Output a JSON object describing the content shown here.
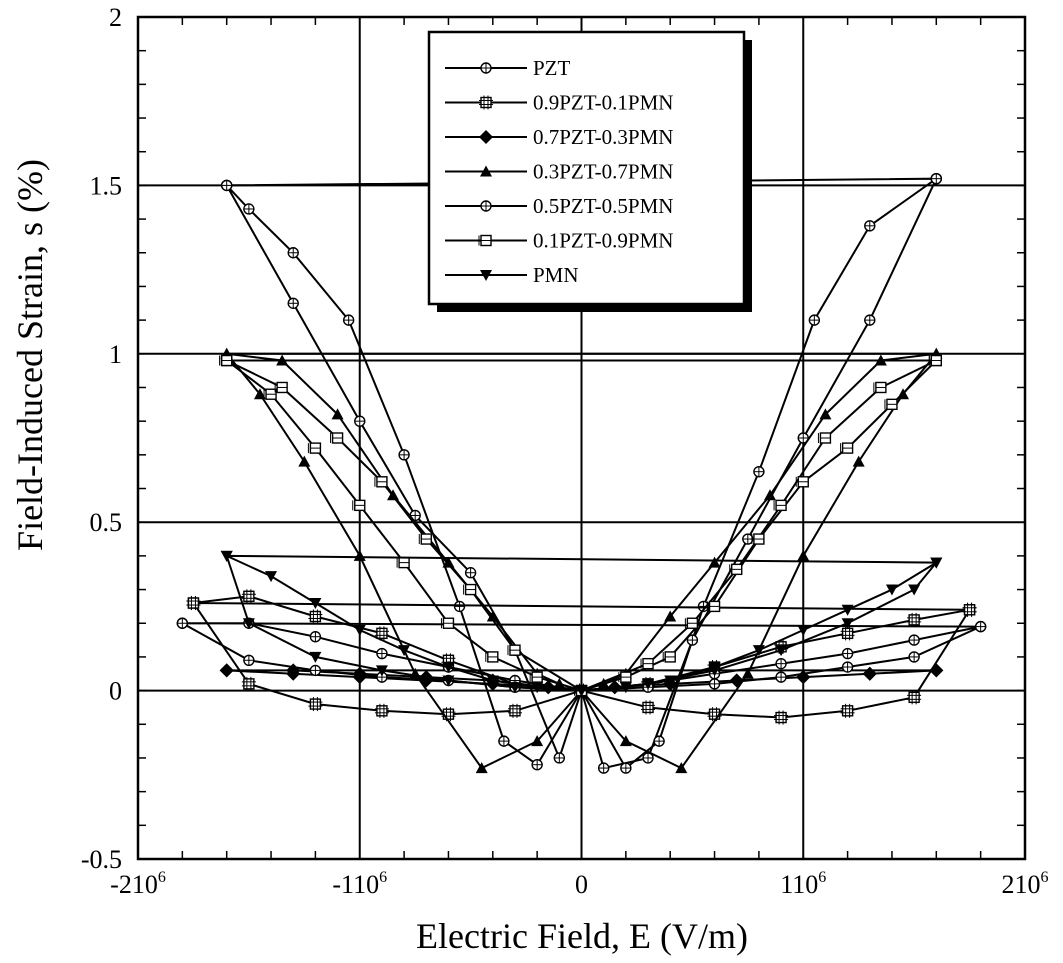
{
  "chart_data": {
    "type": "line",
    "title": "",
    "xlabel": "Electric Field, E (V/m)",
    "ylabel": "Field-Induced Strain, s (%)",
    "xlim": [
      -2000000,
      2000000
    ],
    "ylim": [
      -0.5,
      2
    ],
    "grid": true,
    "legend_position": "top-center",
    "x_ticks": [
      {
        "value": -2000000,
        "label": "-210",
        "sup": "6"
      },
      {
        "value": -1000000,
        "label": "-110",
        "sup": "6"
      },
      {
        "value": 0,
        "label": "0",
        "sup": ""
      },
      {
        "value": 1000000,
        "label": "110",
        "sup": "6"
      },
      {
        "value": 2000000,
        "label": "210",
        "sup": "6"
      }
    ],
    "y_ticks": [
      {
        "value": -0.5,
        "label": "-0.5"
      },
      {
        "value": 0,
        "label": "0"
      },
      {
        "value": 0.5,
        "label": "0.5"
      },
      {
        "value": 1,
        "label": "1"
      },
      {
        "value": 1.5,
        "label": "1.5"
      },
      {
        "value": 2,
        "label": "2"
      }
    ],
    "series": [
      {
        "name": "PZT",
        "marker": "circle-cross",
        "x": [
          -1600000,
          -1300000,
          -1000000,
          -750000,
          -500000,
          -300000,
          -100000,
          0,
          -200000,
          -350000,
          -550000,
          -800000,
          -1050000,
          -1300000,
          -1500000,
          -1600000,
          -1600000,
          1600000,
          1600000,
          1300000,
          1050000,
          800000,
          550000,
          350000,
          200000,
          0,
          100000,
          300000,
          500000,
          750000,
          1000000,
          1300000,
          1600000
        ],
        "y": [
          1.5,
          1.15,
          0.8,
          0.52,
          0.35,
          0.12,
          -0.2,
          0,
          -0.22,
          -0.15,
          0.25,
          0.7,
          1.1,
          1.3,
          1.43,
          1.5,
          1.5,
          1.52,
          1.52,
          1.38,
          1.1,
          0.65,
          0.25,
          -0.15,
          -0.23,
          0,
          -0.23,
          -0.2,
          0.15,
          0.45,
          0.75,
          1.1,
          1.52
        ]
      },
      {
        "name": "0.9PZT-0.1PMN",
        "marker": "square-cross",
        "x": [
          -1750000,
          -1500000,
          -1200000,
          -900000,
          -600000,
          -300000,
          0,
          -300000,
          -600000,
          -900000,
          -1200000,
          -1500000,
          -1750000,
          1750000,
          1500000,
          1200000,
          900000,
          600000,
          300000,
          0,
          300000,
          600000,
          900000,
          1200000,
          1500000,
          1750000
        ],
        "y": [
          0.26,
          0.28,
          0.22,
          0.17,
          0.09,
          0.02,
          0,
          -0.06,
          -0.07,
          -0.06,
          -0.04,
          0.02,
          0.26,
          0.24,
          0.21,
          0.17,
          0.13,
          0.07,
          0.02,
          0,
          -0.05,
          -0.07,
          -0.08,
          -0.06,
          -0.02,
          0.24
        ]
      },
      {
        "name": "0.7PZT-0.3PMN",
        "marker": "diamond",
        "x": [
          -1600000,
          -1300000,
          -1000000,
          -700000,
          -400000,
          -150000,
          0,
          -150000,
          -400000,
          -700000,
          -1000000,
          -1300000,
          -1600000,
          1600000,
          1300000,
          1000000,
          700000,
          400000,
          150000,
          0,
          150000,
          400000,
          700000,
          1000000,
          1300000,
          1600000
        ],
        "y": [
          0.06,
          0.06,
          0.05,
          0.04,
          0.03,
          0.01,
          0,
          0.01,
          0.02,
          0.03,
          0.04,
          0.05,
          0.06,
          0.06,
          0.05,
          0.04,
          0.03,
          0.02,
          0.01,
          0,
          0.01,
          0.02,
          0.03,
          0.04,
          0.05,
          0.06
        ]
      },
      {
        "name": "0.3PZT-0.7PMN",
        "marker": "triangle-up",
        "x": [
          -1600000,
          -1350000,
          -1100000,
          -850000,
          -600000,
          -400000,
          -200000,
          -100000,
          0,
          -200000,
          -450000,
          -750000,
          -1000000,
          -1250000,
          -1450000,
          -1600000,
          1600000,
          1450000,
          1250000,
          1000000,
          750000,
          450000,
          200000,
          0,
          100000,
          200000,
          400000,
          600000,
          850000,
          1100000,
          1350000,
          1600000
        ],
        "y": [
          1.0,
          0.98,
          0.82,
          0.58,
          0.38,
          0.22,
          0.05,
          0.02,
          0,
          -0.15,
          -0.23,
          0.05,
          0.4,
          0.68,
          0.88,
          1.0,
          1.0,
          0.88,
          0.68,
          0.4,
          0.05,
          -0.23,
          -0.15,
          0,
          0.02,
          0.05,
          0.22,
          0.38,
          0.58,
          0.82,
          0.98,
          1.0
        ]
      },
      {
        "name": "0.5PZT-0.5PMN",
        "marker": "circle-cross",
        "x": [
          -1800000,
          -1500000,
          -1200000,
          -900000,
          -600000,
          -300000,
          0,
          -300000,
          -600000,
          -900000,
          -1200000,
          -1500000,
          -1800000,
          1800000,
          1500000,
          1200000,
          900000,
          600000,
          300000,
          0,
          300000,
          600000,
          900000,
          1200000,
          1500000,
          1800000
        ],
        "y": [
          0.2,
          0.2,
          0.16,
          0.11,
          0.07,
          0.03,
          0,
          0.01,
          0.03,
          0.04,
          0.06,
          0.09,
          0.2,
          0.19,
          0.15,
          0.11,
          0.08,
          0.05,
          0.02,
          0,
          0.01,
          0.02,
          0.04,
          0.07,
          0.1,
          0.19
        ]
      },
      {
        "name": "0.1PZT-0.9PMN",
        "marker": "square-tick",
        "x": [
          -1600000,
          -1400000,
          -1200000,
          -1000000,
          -800000,
          -600000,
          -400000,
          -200000,
          0,
          -300000,
          -500000,
          -700000,
          -900000,
          -1100000,
          -1350000,
          -1600000,
          1600000,
          1350000,
          1100000,
          900000,
          700000,
          500000,
          300000,
          0,
          200000,
          400000,
          600000,
          800000,
          1000000,
          1200000,
          1400000,
          1600000
        ],
        "y": [
          0.98,
          0.88,
          0.72,
          0.55,
          0.38,
          0.2,
          0.1,
          0.04,
          0,
          0.12,
          0.3,
          0.45,
          0.62,
          0.75,
          0.9,
          0.98,
          0.98,
          0.9,
          0.75,
          0.55,
          0.36,
          0.2,
          0.08,
          0,
          0.04,
          0.1,
          0.25,
          0.45,
          0.62,
          0.72,
          0.85,
          0.98
        ]
      },
      {
        "name": "PMN",
        "marker": "triangle-down",
        "x": [
          -1600000,
          -1400000,
          -1200000,
          -1000000,
          -800000,
          -600000,
          -400000,
          -200000,
          0,
          -300000,
          -600000,
          -900000,
          -1200000,
          -1500000,
          -1600000,
          1600000,
          1500000,
          1200000,
          900000,
          600000,
          300000,
          0,
          200000,
          400000,
          600000,
          800000,
          1000000,
          1200000,
          1400000,
          1600000
        ],
        "y": [
          0.4,
          0.34,
          0.26,
          0.18,
          0.12,
          0.07,
          0.03,
          0.01,
          0,
          0.01,
          0.03,
          0.06,
          0.1,
          0.2,
          0.4,
          0.38,
          0.3,
          0.2,
          0.12,
          0.06,
          0.02,
          0,
          0.01,
          0.03,
          0.07,
          0.12,
          0.18,
          0.24,
          0.3,
          0.38
        ]
      }
    ]
  }
}
